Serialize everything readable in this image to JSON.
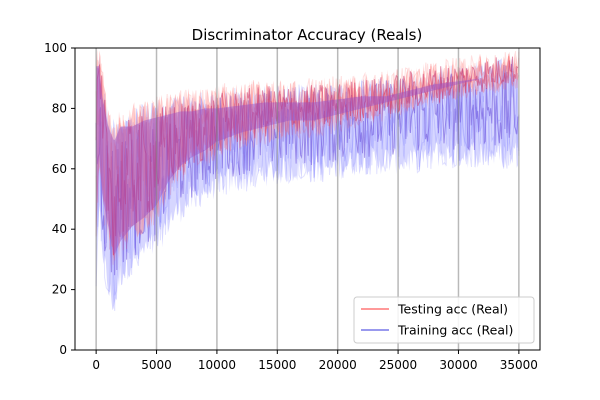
{
  "chart_data": {
    "type": "line",
    "title": "Discriminator Accuracy (Reals)",
    "xlabel": "",
    "ylabel": "",
    "xlim": [
      -1750,
      36750
    ],
    "ylim": [
      0,
      100
    ],
    "x_ticks": [
      0,
      5000,
      10000,
      15000,
      20000,
      25000,
      30000,
      35000
    ],
    "y_ticks": [
      0,
      20,
      40,
      60,
      80,
      100
    ],
    "x_tick_labels": [
      "0",
      "5000",
      "10000",
      "15000",
      "20000",
      "25000",
      "30000",
      "35000"
    ],
    "y_tick_labels": [
      "0",
      "20",
      "40",
      "60",
      "80",
      "100"
    ],
    "grid": false,
    "vertical_markers": [
      0,
      5000,
      10000,
      15000,
      20000,
      25000,
      30000,
      35000
    ],
    "legend": {
      "placement": "lower-right",
      "entries": [
        "Testing acc (Real)",
        "Training acc (Real)"
      ]
    },
    "series": [
      {
        "name": "Testing acc (Real)",
        "color": "#ff0000",
        "x": [
          0,
          250,
          500,
          1000,
          1500,
          2000,
          3000,
          4000,
          5000,
          6000,
          7000,
          8000,
          9000,
          10000,
          12000,
          14000,
          16000,
          18000,
          20000,
          22000,
          24000,
          26000,
          28000,
          30000,
          32000,
          34000,
          35000
        ],
        "y_low": [
          30,
          60,
          45,
          35,
          25,
          30,
          35,
          38,
          42,
          50,
          55,
          58,
          60,
          63,
          66,
          68,
          70,
          70,
          72,
          74,
          76,
          78,
          80,
          82,
          84,
          86,
          86
        ],
        "y_high": [
          100,
          100,
          95,
          80,
          75,
          80,
          82,
          83,
          85,
          86,
          86,
          87,
          87,
          88,
          89,
          90,
          90,
          90,
          91,
          92,
          93,
          94,
          96,
          97,
          98,
          99,
          99
        ],
        "y_mean": [
          65,
          85,
          70,
          58,
          50,
          55,
          58,
          60,
          63,
          68,
          70,
          72,
          73,
          75,
          77,
          79,
          80,
          80,
          81,
          83,
          84,
          86,
          88,
          89,
          91,
          93,
          93
        ]
      },
      {
        "name": "Training acc (Real)",
        "color": "#0000ff",
        "x": [
          0,
          250,
          500,
          1000,
          1500,
          2000,
          3000,
          4000,
          5000,
          6000,
          7000,
          8000,
          9000,
          10000,
          12000,
          14000,
          16000,
          18000,
          20000,
          22000,
          24000,
          26000,
          28000,
          30000,
          32000,
          34000,
          35000
        ],
        "y_low": [
          20,
          40,
          30,
          15,
          10,
          20,
          25,
          28,
          30,
          38,
          42,
          45,
          48,
          50,
          52,
          54,
          55,
          55,
          56,
          58,
          58,
          58,
          60,
          60,
          60,
          60,
          60
        ],
        "y_high": [
          100,
          100,
          90,
          80,
          78,
          80,
          80,
          82,
          83,
          84,
          85,
          85,
          86,
          86,
          87,
          88,
          88,
          88,
          89,
          90,
          90,
          92,
          94,
          95,
          96,
          97,
          97
        ],
        "y_mean": [
          60,
          75,
          60,
          48,
          44,
          50,
          52,
          55,
          57,
          62,
          64,
          66,
          68,
          70,
          72,
          73,
          74,
          74,
          75,
          76,
          77,
          78,
          79,
          80,
          80,
          80,
          80
        ]
      }
    ]
  }
}
